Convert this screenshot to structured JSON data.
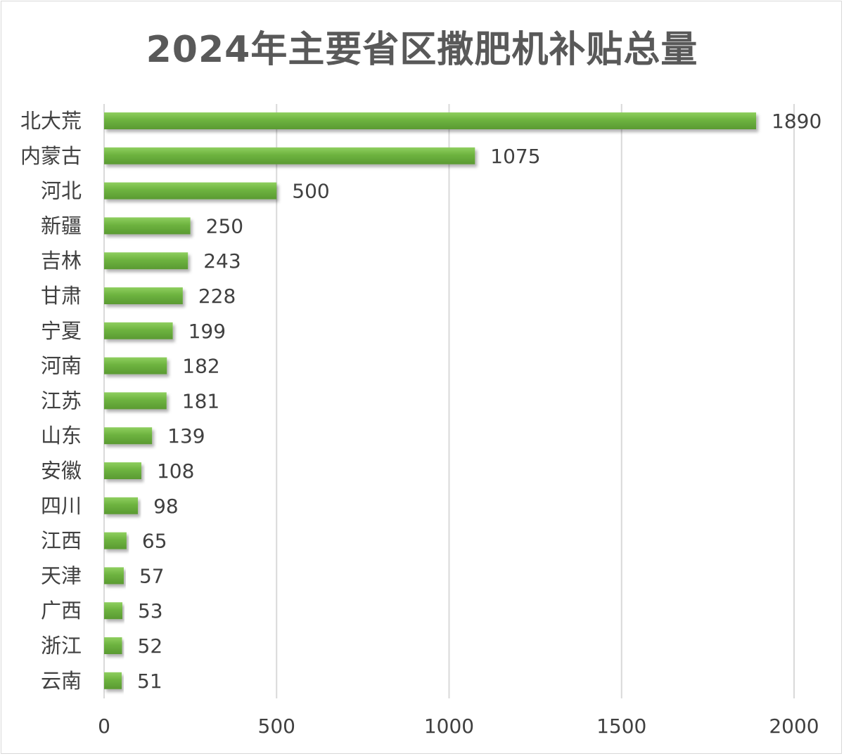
{
  "chart_data": {
    "type": "bar",
    "orientation": "horizontal",
    "title": "2024年主要省区撒肥机补贴总量",
    "categories": [
      "北大荒",
      "内蒙古",
      "河北",
      "新疆",
      "吉林",
      "甘肃",
      "宁夏",
      "河南",
      "江苏",
      "山东",
      "安徽",
      "四川",
      "江西",
      "天津",
      "广西",
      "浙江",
      "云南"
    ],
    "values": [
      1890,
      1075,
      500,
      250,
      243,
      228,
      199,
      182,
      181,
      139,
      108,
      98,
      65,
      57,
      53,
      52,
      51
    ],
    "xlim": [
      0,
      2000
    ],
    "x_ticks": [
      0,
      500,
      1000,
      1500,
      2000
    ],
    "xlabel": "",
    "ylabel": "",
    "grid": true,
    "legend": "none",
    "bar_color": "#70ad47"
  }
}
